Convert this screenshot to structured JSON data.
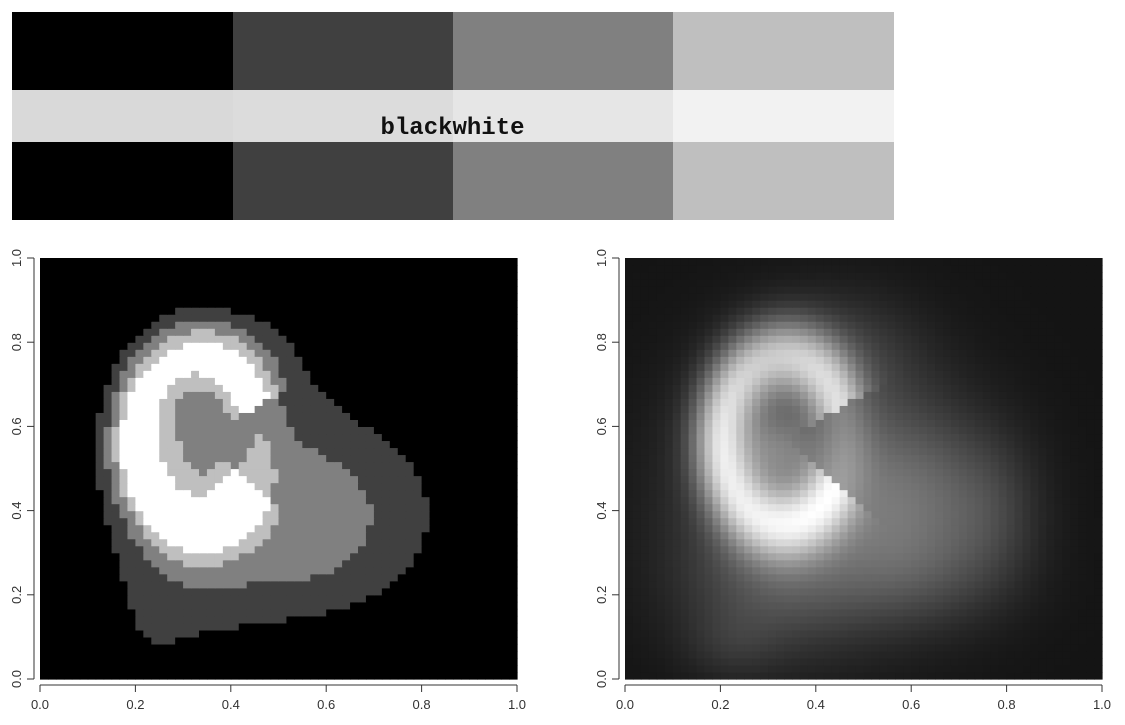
{
  "palette": {
    "name": "blackwhite",
    "dark_row": [
      "#000000",
      "#404040",
      "#808080",
      "#bfbfbf"
    ],
    "light_row": [
      "#d9d9d9",
      "#dcdcdc",
      "#e6e6e6",
      "#f2f2f2"
    ]
  },
  "chart_data": [
    {
      "type": "heatmap",
      "title": "",
      "xlabel": "",
      "ylabel": "",
      "xlim": [
        0,
        1
      ],
      "ylim": [
        0,
        1
      ],
      "x_ticks": [
        "0.0",
        "0.2",
        "0.4",
        "0.6",
        "0.8",
        "1.0"
      ],
      "y_ticks": [
        "0.0",
        "0.2",
        "0.4",
        "0.6",
        "0.8",
        "1.0"
      ],
      "color_scheme": "discrete 5-level grayscale (black, dark gray, mid gray, light gray, white)",
      "levels": [
        "#000000",
        "#404040",
        "#808080",
        "#bfbfbf",
        "#ffffff"
      ]
    },
    {
      "type": "heatmap",
      "title": "",
      "xlabel": "",
      "ylabel": "",
      "xlim": [
        0,
        1
      ],
      "ylim": [
        0,
        1
      ],
      "x_ticks": [
        "0.0",
        "0.2",
        "0.4",
        "0.6",
        "0.8",
        "1.0"
      ],
      "y_ticks": [
        "0.0",
        "0.2",
        "0.4",
        "0.6",
        "0.8",
        "1.0"
      ],
      "color_scheme": "continuous grayscale, black (low) to white (high)"
    }
  ]
}
